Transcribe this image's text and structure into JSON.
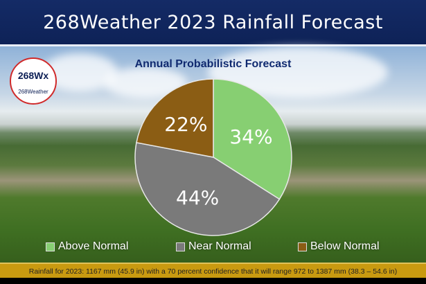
{
  "header": {
    "title": "268Weather 2023 Rainfall Forecast"
  },
  "logo": {
    "main": "268Wx",
    "sub": "268Weather"
  },
  "chart_data": {
    "type": "pie",
    "title": "Annual Probabilistic Forecast",
    "categories": [
      "Above Normal",
      "Near Normal",
      "Below Normal"
    ],
    "values": [
      34,
      44,
      22
    ],
    "labels": [
      "34%",
      "44%",
      "22%"
    ],
    "colors": [
      "#87cf72",
      "#7a7a7a",
      "#8b5d14"
    ],
    "legend": "bottom"
  },
  "footer": {
    "text": "Rainfall for 2023: 1167 mm (45.9 in) with a 70 percent confidence that it will range 972 to 1387 mm (38.3 – 54.6 in)"
  }
}
